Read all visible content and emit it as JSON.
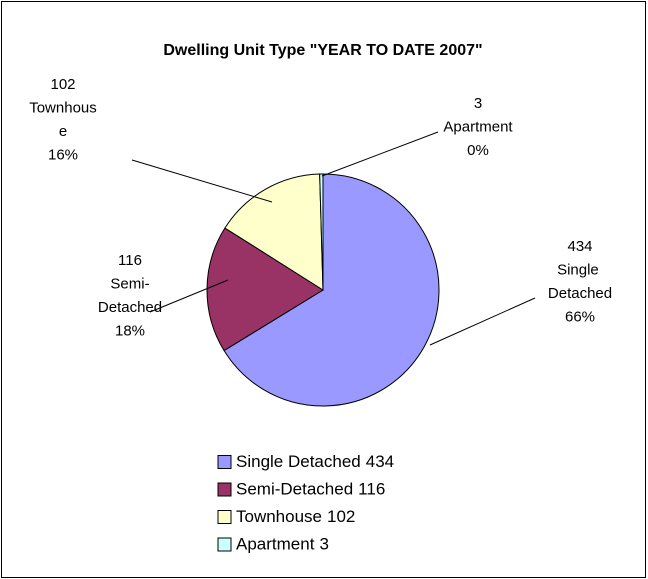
{
  "chart_data": {
    "type": "pie",
    "title": "Dwelling Unit Type \"YEAR TO DATE 2007\"",
    "categories": [
      "Single Detached",
      "Semi-Detached",
      "Townhouse",
      "Apartment"
    ],
    "values": [
      434,
      116,
      102,
      3
    ],
    "percents": [
      66,
      18,
      16,
      0
    ],
    "percent_labels": [
      "66%",
      "18%",
      "16%",
      "0%"
    ],
    "colors": [
      "#9999ff",
      "#993366",
      "#ffffcc",
      "#ccffff"
    ],
    "legend": "bottom"
  }
}
